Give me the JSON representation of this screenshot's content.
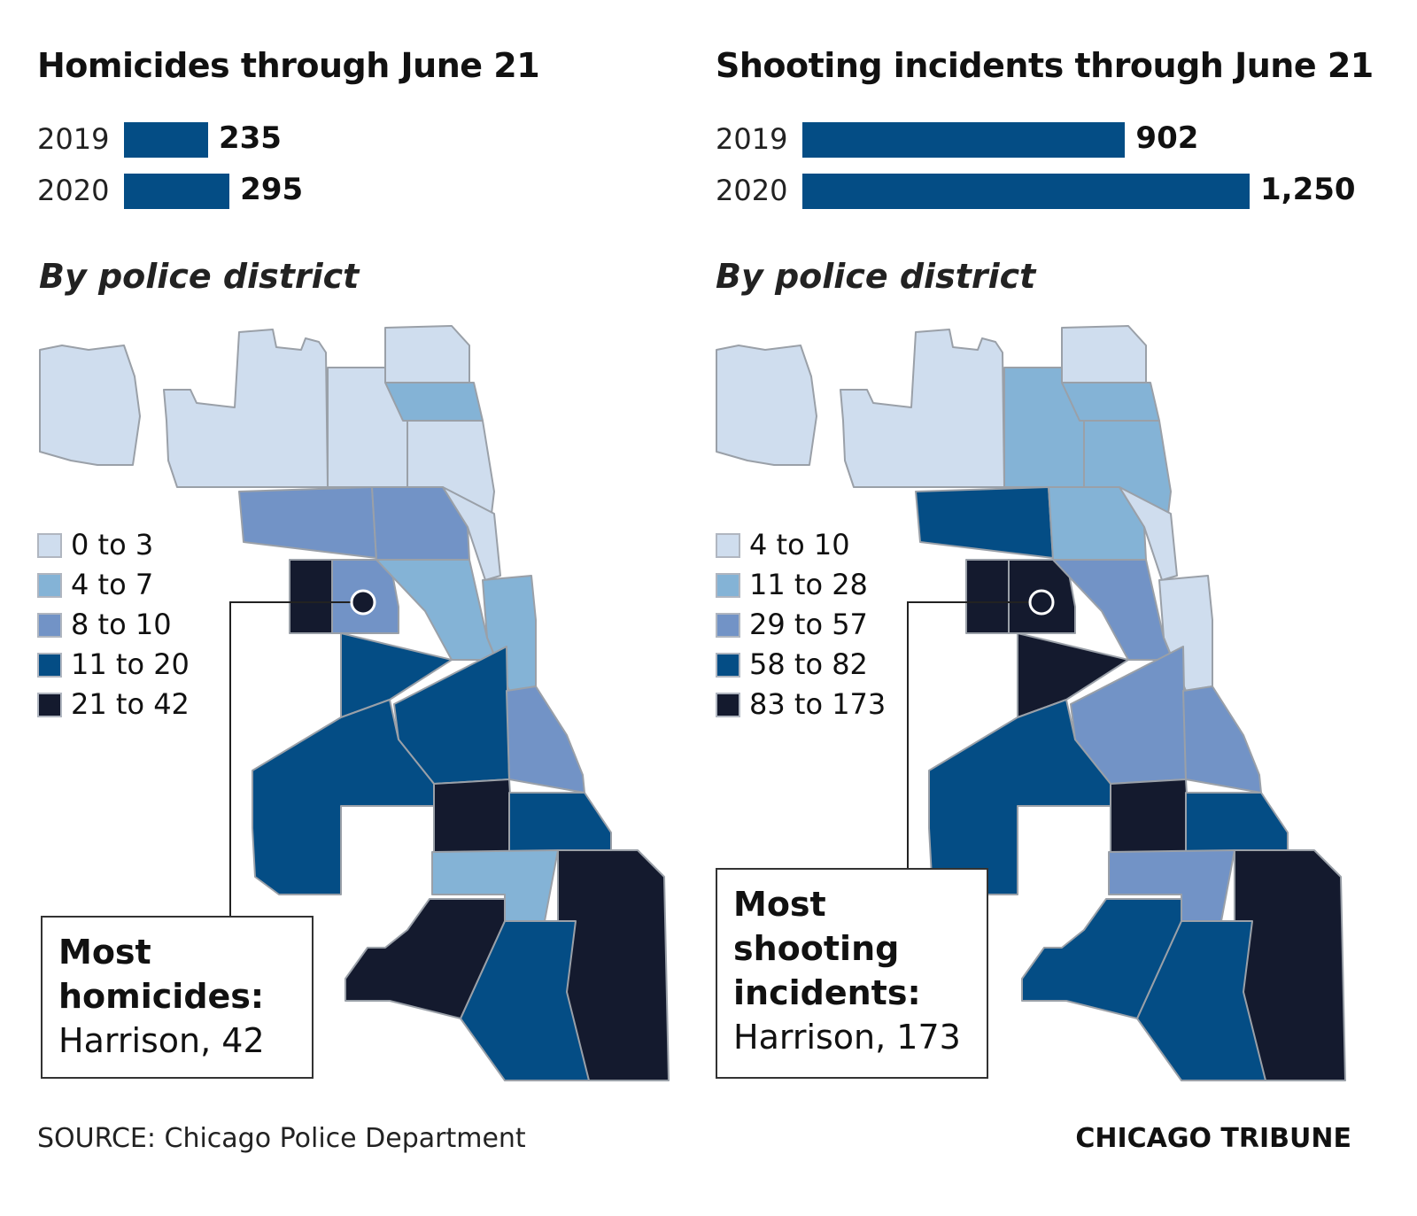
{
  "chart_data": [
    {
      "type": "bar",
      "title": "Homicides through June 21",
      "categories": [
        "2019",
        "2020"
      ],
      "values": [
        235,
        295
      ],
      "value_labels": [
        "235",
        "295"
      ],
      "max_value": 1250
    },
    {
      "type": "bar",
      "title": "Shooting incidents through June 21",
      "categories": [
        "2019",
        "2020"
      ],
      "values": [
        902,
        1250
      ],
      "value_labels": [
        "902",
        "1,250"
      ],
      "max_value": 1250
    }
  ],
  "maps": [
    {
      "subtitle": "By police district",
      "legend": [
        {
          "label": "0 to 3",
          "color": "#cfddee"
        },
        {
          "label": "4 to 7",
          "color": "#84b3d6"
        },
        {
          "label": "8 to 10",
          "color": "#7293c6"
        },
        {
          "label": "11 to 20",
          "color": "#044d85"
        },
        {
          "label": "21 to 42",
          "color": "#141a2e"
        }
      ],
      "district_classes": [
        0,
        0,
        0,
        0,
        1,
        0,
        2,
        2,
        0,
        1,
        4,
        2,
        1,
        3,
        3,
        3,
        2,
        4,
        3,
        1,
        4,
        3,
        4
      ],
      "callout": {
        "head_line1": "Most",
        "head_line2": "homicides:",
        "value": "Harrison, 42"
      }
    },
    {
      "subtitle": "By police district",
      "legend": [
        {
          "label": "4 to 10",
          "color": "#cfddee"
        },
        {
          "label": "11 to 28",
          "color": "#84b3d6"
        },
        {
          "label": "29 to 57",
          "color": "#7293c6"
        },
        {
          "label": "58 to 82",
          "color": "#044d85"
        },
        {
          "label": "83 to 173",
          "color": "#141a2e"
        }
      ],
      "district_classes": [
        0,
        0,
        1,
        0,
        1,
        1,
        3,
        1,
        0,
        0,
        4,
        4,
        2,
        4,
        2,
        3,
        2,
        4,
        3,
        2,
        4,
        3,
        3
      ],
      "callout": {
        "head_line1": "Most",
        "head_line2": "shooting",
        "head_line3": "incidents:",
        "value": "Harrison, 173"
      }
    }
  ],
  "colors": {
    "bar": "#044d85",
    "border": "#9aa0a8"
  },
  "source": "SOURCE: Chicago Police Department",
  "brand": "CHICAGO TRIBUNE"
}
